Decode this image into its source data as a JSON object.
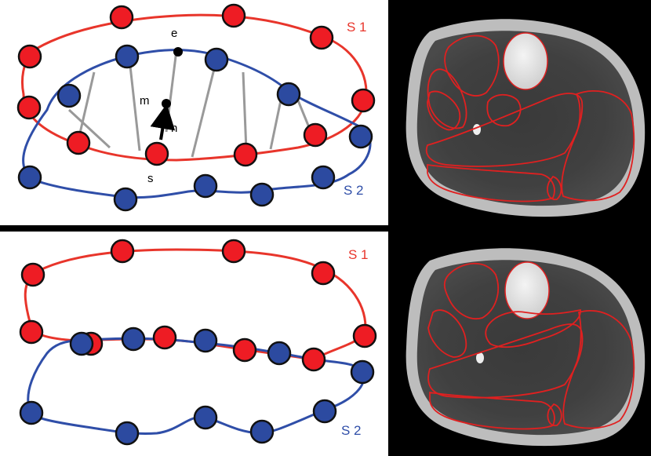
{
  "labels": {
    "top_s1": "S 1",
    "top_s2": "S 2",
    "bottom_s1": "S 1",
    "bottom_s2": "S 2",
    "e": "e",
    "m": "m",
    "n": "n",
    "s": "s"
  },
  "colors": {
    "surface1": "#e8352b",
    "surface2": "#2f4ea8",
    "node_red": "#ee1c24",
    "node_blue": "#2c4aa0",
    "correspondence": "#999999",
    "divider": "#000000",
    "mri_background": "#000000",
    "contour": "#e02020"
  }
}
